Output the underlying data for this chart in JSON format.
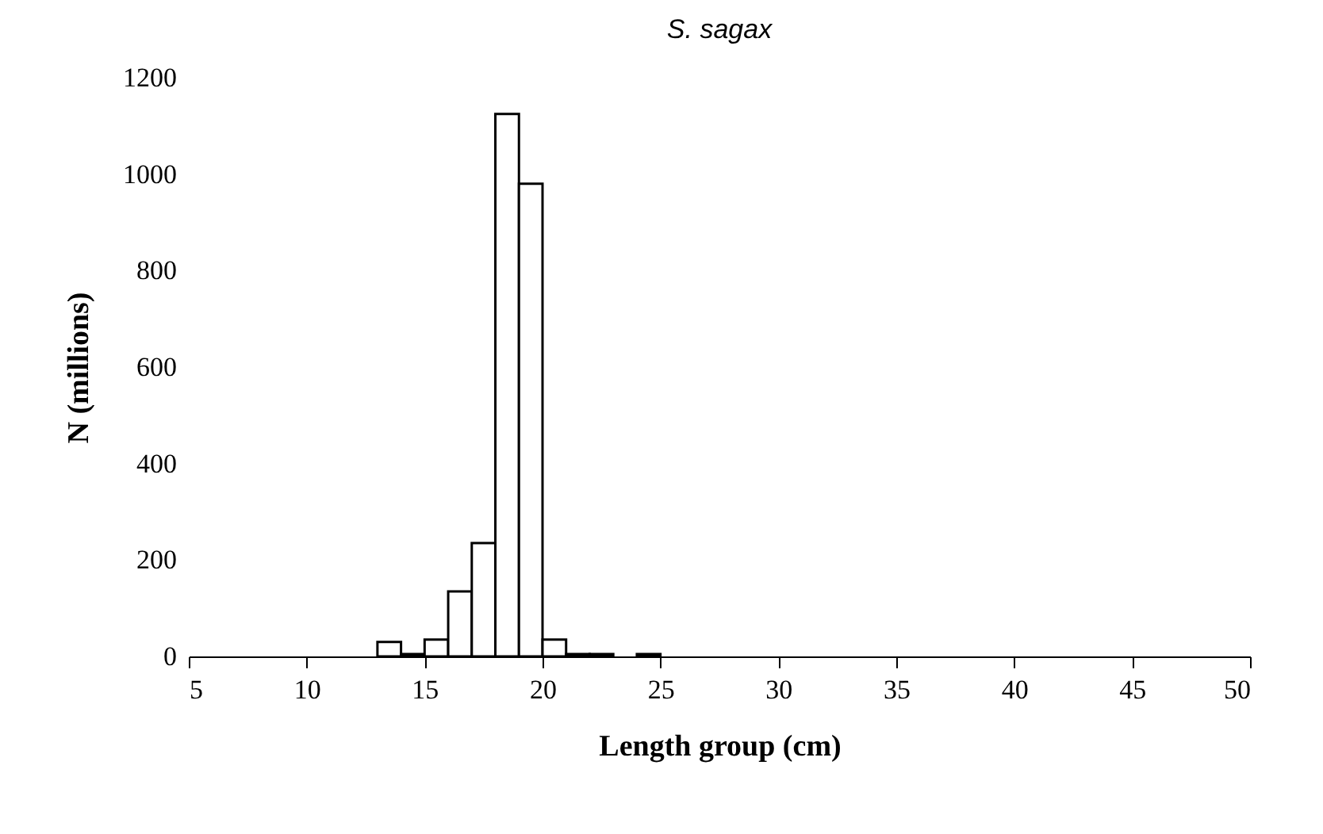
{
  "chart_data": {
    "type": "histogram",
    "title": "S. sagax",
    "xlabel": "Length group (cm)",
    "ylabel": "N (millions)",
    "bins": [
      13,
      14,
      15,
      16,
      17,
      18,
      19,
      20,
      21,
      22,
      23,
      24,
      25
    ],
    "values": [
      30,
      5,
      35,
      135,
      235,
      1125,
      980,
      35,
      5,
      5,
      0,
      5
    ],
    "color": "#ffffff",
    "xlim": [
      5,
      50
    ],
    "xticks": [
      5,
      10,
      15,
      20,
      25,
      30,
      35,
      40,
      45,
      50
    ],
    "ylim": [
      0,
      1200
    ],
    "yticks": [
      0,
      200,
      400,
      600,
      800,
      1000,
      1200
    ],
    "grid": false
  }
}
